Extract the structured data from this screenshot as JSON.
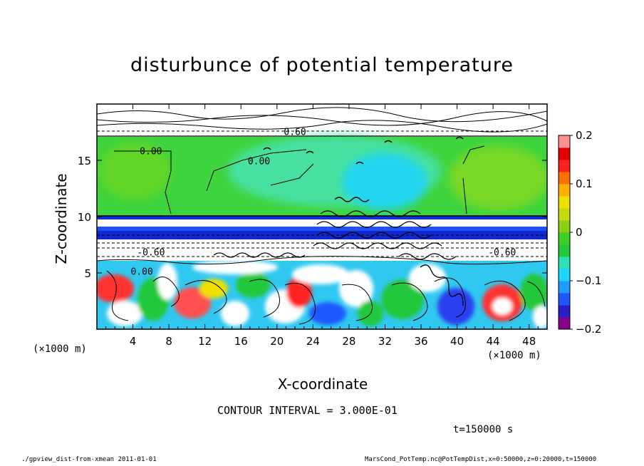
{
  "chart_data": {
    "type": "heatmap",
    "title": "disturbunce of potential temperature",
    "xlabel": "X-coordinate",
    "ylabel": "Z-coordinate",
    "x_unit_label": "(×1000 m)",
    "xlim": [
      0,
      50
    ],
    "ylim": [
      0,
      20
    ],
    "x_ticks": [
      4,
      8,
      12,
      16,
      20,
      24,
      28,
      32,
      36,
      40,
      44,
      48
    ],
    "y_ticks": [
      5,
      10,
      15
    ],
    "colorbar": {
      "min": -0.2,
      "max": 0.2,
      "tick_labels": [
        "0.2",
        "0.1",
        "0",
        "−0.1",
        "−0.2"
      ],
      "tick_values": [
        0.2,
        0.1,
        0,
        -0.1,
        -0.2
      ],
      "colors": [
        "#8b008b",
        "#2b1ec8",
        "#1f58ff",
        "#1e9bff",
        "#18d8ff",
        "#2ee0b8",
        "#22c83a",
        "#3ed02a",
        "#8ad010",
        "#c8d810",
        "#f0e000",
        "#ffb000",
        "#ff7000",
        "#ff2020",
        "#e00000",
        "#ff9090"
      ]
    },
    "contour_labels": [
      {
        "text": "0.60",
        "x": 22,
        "z": 17.5
      },
      {
        "text": "0.00",
        "x": 6,
        "z": 15.8
      },
      {
        "text": "0.00",
        "x": 18,
        "z": 14.9
      },
      {
        "text": "-0.60",
        "x": 6,
        "z": 6.8
      },
      {
        "text": "0.00",
        "x": 5,
        "z": 5.1
      },
      {
        "text": "-0.60",
        "x": 45,
        "z": 6.8
      }
    ],
    "contour_interval": "CONTOUR INTERVAL = 3.000E-01"
  },
  "time_label": "t=150000 s",
  "footer": {
    "left": "./gpview_dist-from-xmean  2011-01-01",
    "right": "MarsCond_PotTemp.nc@PotTempDist,x=0:50000,z=0:20000,t=150000"
  }
}
